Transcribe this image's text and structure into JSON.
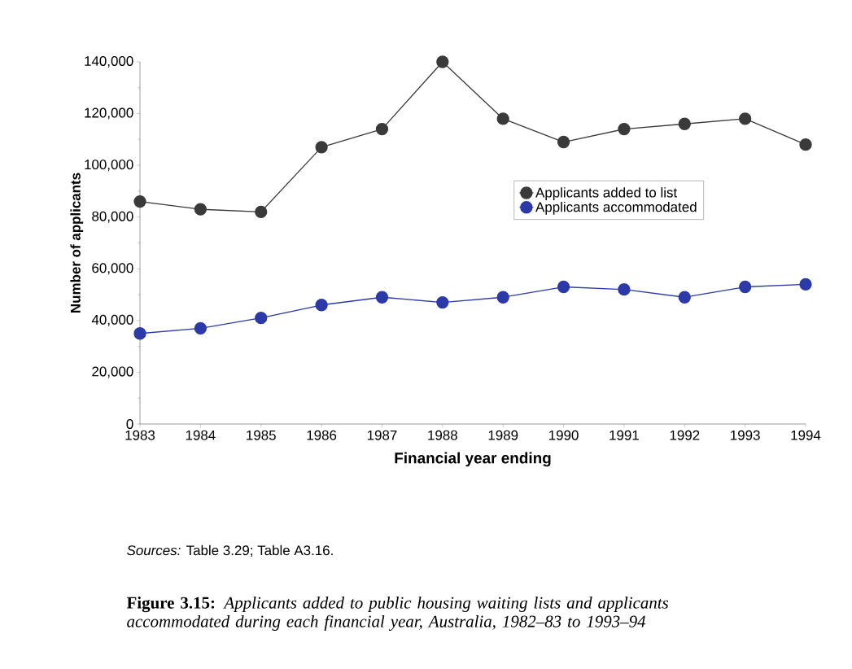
{
  "chart_data": {
    "type": "line",
    "xlabel": "Financial year ending",
    "ylabel": "Number of applicants",
    "x": [
      1983,
      1984,
      1985,
      1986,
      1987,
      1988,
      1989,
      1990,
      1991,
      1992,
      1993,
      1994
    ],
    "series": [
      {
        "name": "Applicants added to list",
        "color": "#3a3a3a",
        "values": [
          86000,
          83000,
          82000,
          107000,
          114000,
          140000,
          118000,
          109000,
          114000,
          116000,
          118000,
          108000
        ]
      },
      {
        "name": "Applicants accommodated",
        "color": "#2b3aa8",
        "values": [
          35000,
          37000,
          41000,
          46000,
          49000,
          47000,
          49000,
          53000,
          52000,
          49000,
          53000,
          54000
        ]
      }
    ],
    "xlim": [
      1983,
      1994
    ],
    "xticks": [
      1983,
      1984,
      1985,
      1986,
      1987,
      1988,
      1989,
      1990,
      1991,
      1992,
      1993,
      1994
    ],
    "ylim": [
      0,
      140000
    ],
    "yticks": [
      {
        "value": 0,
        "label": "0"
      },
      {
        "value": 20000,
        "label": "20,000"
      },
      {
        "value": 40000,
        "label": "40,000"
      },
      {
        "value": 60000,
        "label": "60,000"
      },
      {
        "value": 80000,
        "label": "80,000"
      },
      {
        "value": 100000,
        "label": "100,000"
      },
      {
        "value": 120000,
        "label": "120,000"
      },
      {
        "value": 140000,
        "label": "140,000"
      }
    ],
    "legend": "right",
    "marker": "circle",
    "line_style": "solid",
    "grid": false,
    "annotations": [
      "*Sources:* Table 3.29; Table A3.16.",
      "**Figure 3.15:** *Applicants added to public housing waiting lists and applicants accommodated during each financial year, Australia, 1982–83 to 1993–94*"
    ]
  }
}
